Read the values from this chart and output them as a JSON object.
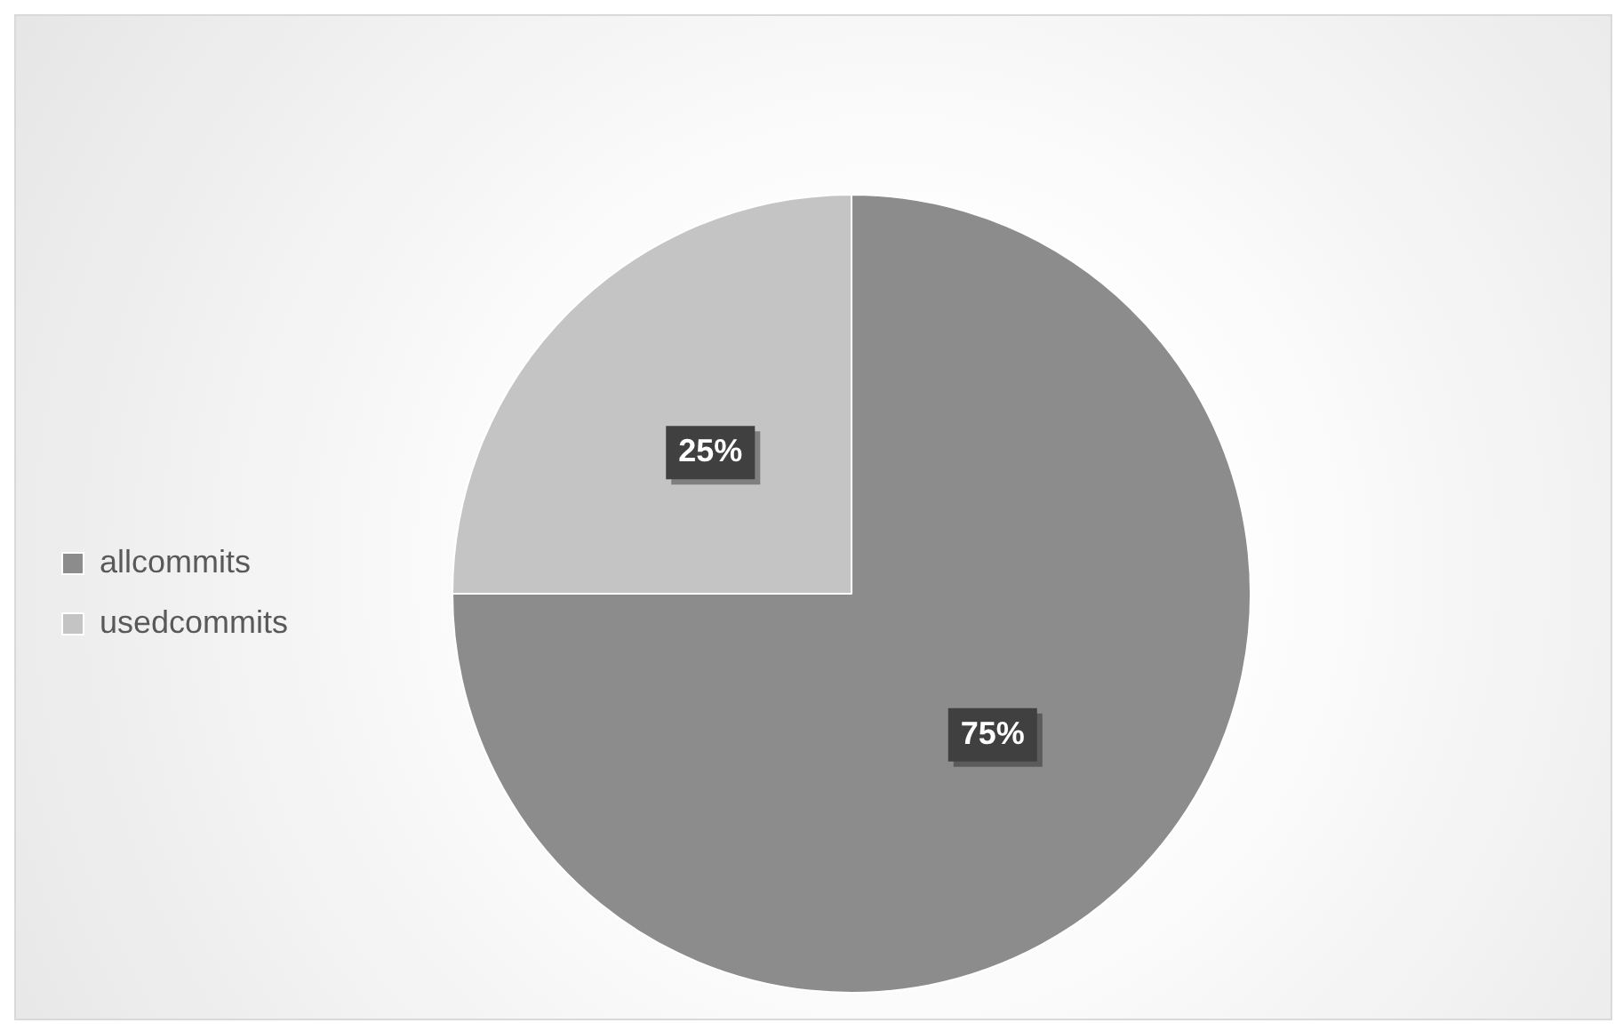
{
  "chart_data": {
    "type": "pie",
    "categories": [
      "allcommits",
      "usedcommits"
    ],
    "values": [
      75,
      25
    ],
    "colors": [
      "#8c8c8c",
      "#c4c4c4"
    ],
    "value_labels": [
      "75%",
      "25%"
    ],
    "legend": "left"
  }
}
